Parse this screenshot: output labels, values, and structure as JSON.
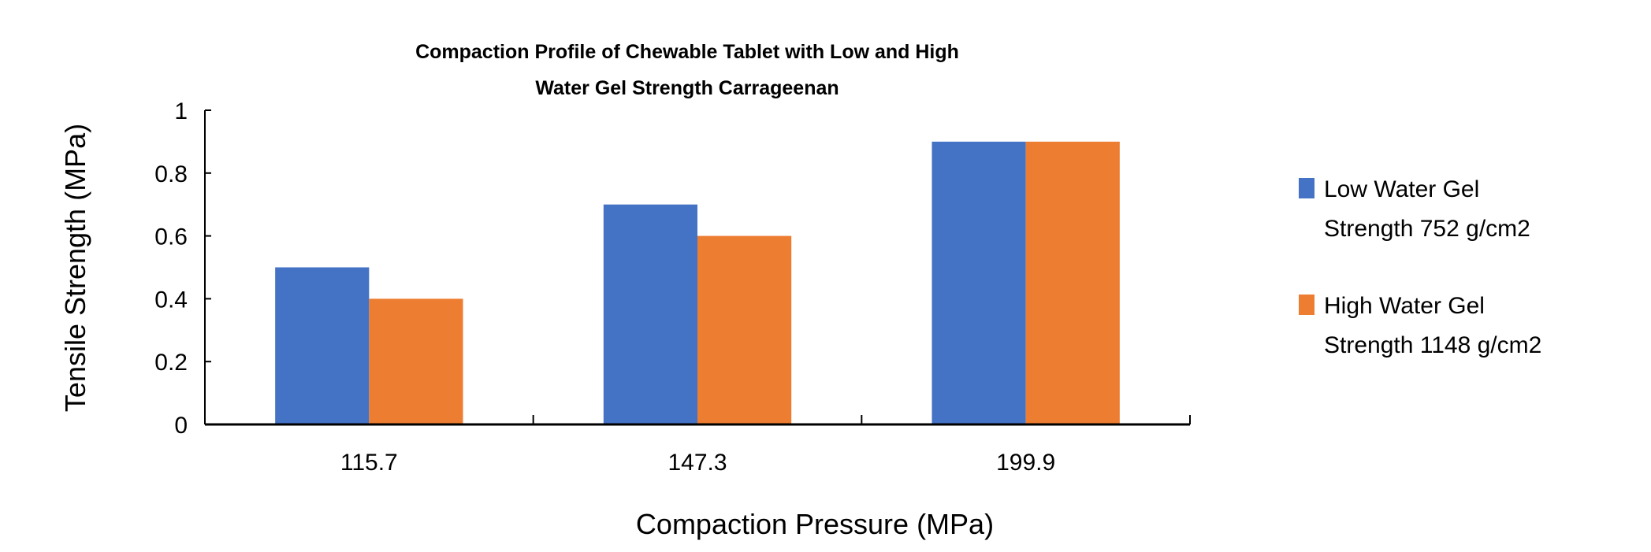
{
  "chart_data": {
    "type": "bar",
    "title": [
      "Compaction Profile of Chewable Tablet with Low and High",
      "Water Gel Strength Carrageenan"
    ],
    "xlabel": "Compaction Pressure (MPa)",
    "ylabel": "Tensile Strength (MPa)",
    "categories": [
      "115.7",
      "147.3",
      "199.9"
    ],
    "series": [
      {
        "name": "Low Water Gel Strength 752 g/cm2",
        "legend_lines": [
          "Low Water Gel",
          "Strength 752 g/cm2"
        ],
        "color": "#4472C4",
        "values": [
          0.5,
          0.7,
          0.9
        ]
      },
      {
        "name": "High Water Gel Strength 1148 g/cm2",
        "legend_lines": [
          "High Water Gel",
          "Strength 1148 g/cm2"
        ],
        "color": "#ED7D31",
        "values": [
          0.4,
          0.6,
          0.9
        ]
      }
    ],
    "ylim": [
      0,
      1
    ],
    "yticks": [
      "0",
      "0.2",
      "0.4",
      "0.6",
      "0.8",
      "1"
    ],
    "grid": false,
    "legend_position": "right"
  }
}
